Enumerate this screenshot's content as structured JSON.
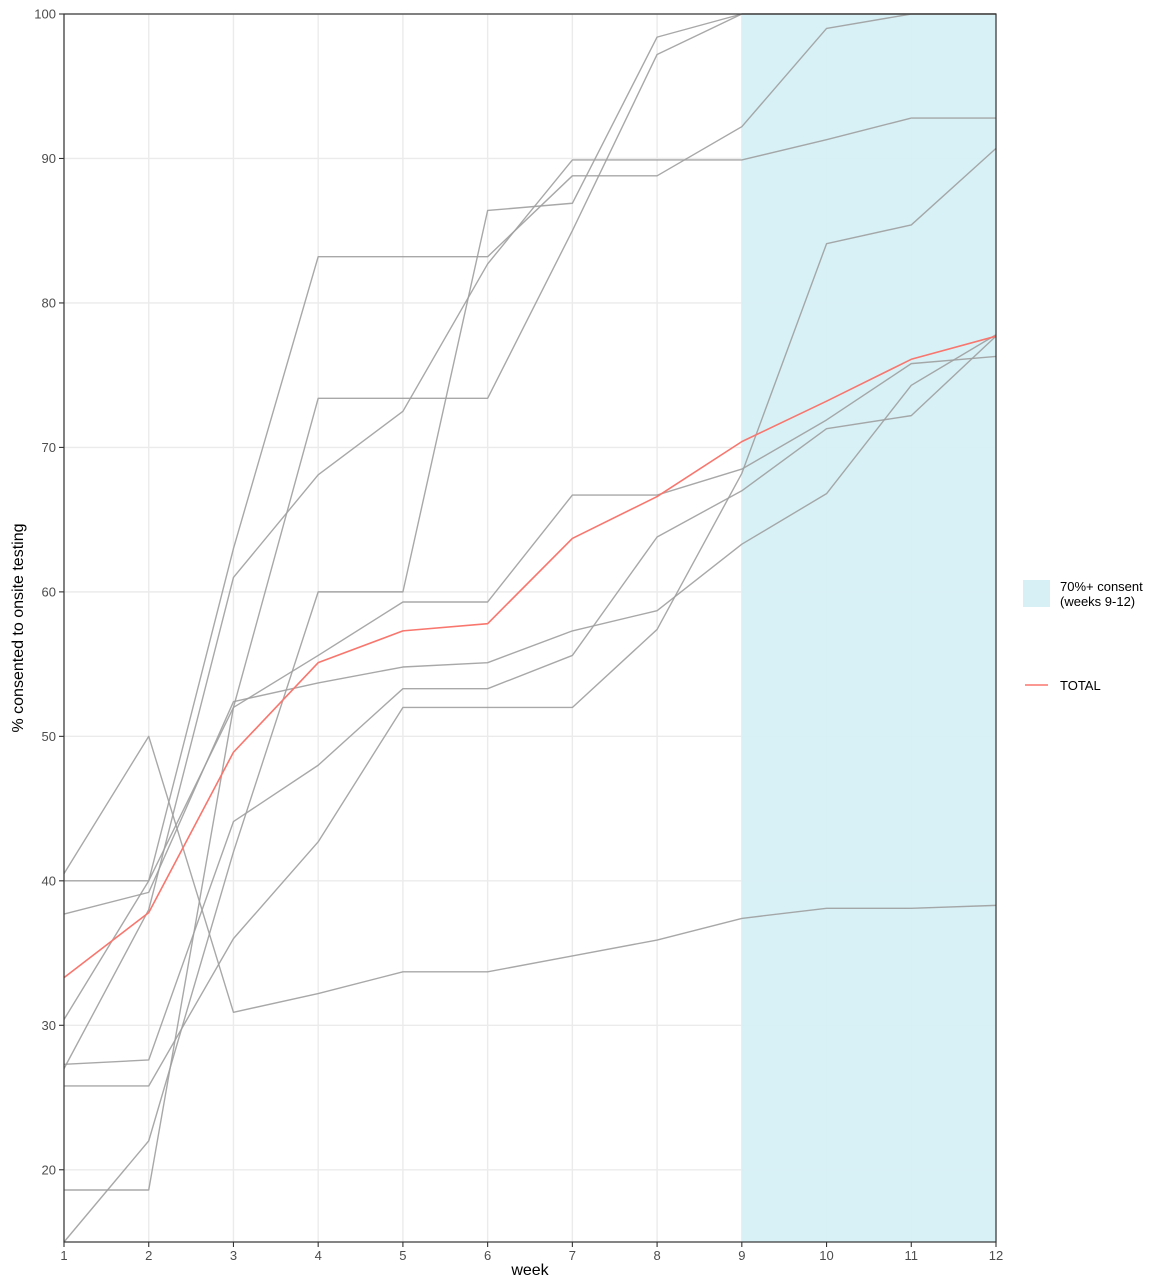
{
  "chart_data": {
    "type": "line",
    "xlabel": "week",
    "ylabel": "% consented to onsite testing",
    "xlim": [
      1,
      12
    ],
    "ylim": [
      15,
      100
    ],
    "x_ticks": [
      1,
      2,
      3,
      4,
      5,
      6,
      7,
      8,
      9,
      10,
      11,
      12
    ],
    "y_ticks": [
      20,
      30,
      40,
      50,
      60,
      70,
      80,
      90,
      100
    ],
    "grid": true,
    "legend_position": "right",
    "highlight_band": {
      "x_start": 9,
      "x_end": 12,
      "label_line1": "70%+ consent",
      "label_line2": "(weeks 9-12)",
      "color": "#d6f0f5"
    },
    "x": [
      1,
      2,
      3,
      4,
      5,
      6,
      7,
      8,
      9,
      10,
      11,
      12
    ],
    "series": [
      {
        "values": [
          15.0,
          22.0,
          42.0,
          60.0,
          60.0,
          86.4,
          86.9,
          98.4,
          100,
          100,
          100,
          100
        ],
        "color": "#9e9e9e"
      },
      {
        "values": [
          27.0,
          38.0,
          61.0,
          68.1,
          72.5,
          82.7,
          89.9,
          89.9,
          89.9,
          91.3,
          92.8,
          92.8
        ],
        "color": "#9e9e9e"
      },
      {
        "values": [
          30.4,
          40.0,
          63.0,
          83.2,
          83.2,
          83.2,
          88.8,
          88.8,
          92.2,
          99.0,
          100,
          100
        ],
        "color": "#9e9e9e"
      },
      {
        "values": [
          18.6,
          18.6,
          52.0,
          73.4,
          73.4,
          73.4,
          85.0,
          97.2,
          100,
          100,
          100,
          100
        ],
        "color": "#9e9e9e"
      },
      {
        "values": [
          40.0,
          40.0,
          52.0,
          55.6,
          59.3,
          59.3,
          66.7,
          66.7,
          68.5,
          71.9,
          75.8,
          76.3
        ],
        "color": "#9e9e9e"
      },
      {
        "values": [
          25.8,
          25.8,
          36.0,
          42.7,
          52.0,
          52.0,
          52.0,
          57.4,
          68.2,
          84.1,
          85.4,
          90.7
        ],
        "color": "#9e9e9e"
      },
      {
        "values": [
          37.7,
          39.2,
          52.4,
          53.7,
          54.8,
          55.1,
          57.3,
          58.7,
          63.3,
          66.8,
          74.3,
          77.8
        ],
        "color": "#9e9e9e"
      },
      {
        "values": [
          27.3,
          27.6,
          44.1,
          48.0,
          53.3,
          53.3,
          55.6,
          63.8,
          67.0,
          71.3,
          72.2,
          77.7
        ],
        "color": "#9e9e9e"
      },
      {
        "values": [
          40.5,
          50.0,
          30.9,
          32.2,
          33.7,
          33.7,
          34.8,
          35.9,
          37.4,
          38.1,
          38.1,
          38.3
        ],
        "color": "#9e9e9e",
        "note_fix": true
      },
      {
        "name": "TOTAL",
        "values": [
          33.3,
          37.8,
          48.9,
          55.1,
          57.3,
          57.8,
          63.7,
          66.6,
          70.4,
          73.2,
          76.1,
          77.7
        ],
        "color": "#f8766d"
      }
    ]
  }
}
